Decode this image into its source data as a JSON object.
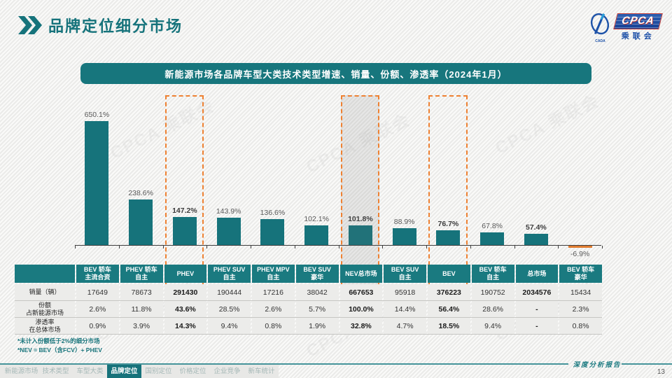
{
  "page": {
    "title": "品牌定位细分市场",
    "page_number": "13",
    "report_label": "深度分析报告",
    "watermark_text": "CPCA 乘联会"
  },
  "logo": {
    "cpca": "CPCA",
    "org": "乘联会",
    "icon_text": "CADA"
  },
  "banner": {
    "title": "新能源市场各品牌车型大类技术类型增速、销量、份额、渗透率（2024年1月）"
  },
  "chart_data": {
    "type": "bar",
    "title": "新能源市场各品牌车型大类技术类型增速、销量、份额、渗透率（2024年1月）",
    "categories": [
      "BEV 轿车 主流合资",
      "PHEV 轿车 自主",
      "PHEV",
      "PHEV SUV 自主",
      "PHEV MPV 自主",
      "BEV SUV 豪华",
      "NEV总市场",
      "BEV SUV 自主",
      "BEV",
      "BEV 轿车 自主",
      "总市场",
      "BEV 轿车 豪华"
    ],
    "values": [
      650.1,
      238.6,
      147.2,
      143.9,
      136.6,
      102.1,
      101.8,
      88.9,
      76.7,
      67.8,
      57.4,
      -6.9
    ],
    "value_labels": [
      "650.1%",
      "238.6%",
      "147.2%",
      "143.9%",
      "136.6%",
      "102.1%",
      "101.8%",
      "88.9%",
      "76.7%",
      "67.8%",
      "57.4%",
      "-6.9%"
    ],
    "emphasized_columns": [
      2,
      6,
      8,
      10
    ],
    "dashed_highlight_columns": [
      2,
      6,
      8
    ],
    "shaded_column": 6,
    "bar_color": "#16737b",
    "negative_bar_color": "#e07c30",
    "highlight_border_color": "#ee8132",
    "ylim": [
      -50,
      700
    ],
    "grid": false,
    "legend": false
  },
  "table": {
    "row_headers": [
      [
        "销量（辆）"
      ],
      [
        "份额",
        "占新能源市场"
      ],
      [
        "渗透率",
        "在总体市场"
      ]
    ],
    "columns": [
      {
        "header": [
          "BEV 轿车",
          "主流合资"
        ],
        "sales": "17649",
        "share": "2.6%",
        "penetration": "0.9%"
      },
      {
        "header": [
          "PHEV 轿车",
          "自主"
        ],
        "sales": "78673",
        "share": "11.8%",
        "penetration": "3.9%"
      },
      {
        "header": [
          "PHEV"
        ],
        "sales": "291430",
        "share": "43.6%",
        "penetration": "14.3%"
      },
      {
        "header": [
          "PHEV SUV",
          "自主"
        ],
        "sales": "190444",
        "share": "28.5%",
        "penetration": "9.4%"
      },
      {
        "header": [
          "PHEV MPV",
          "自主"
        ],
        "sales": "17216",
        "share": "2.6%",
        "penetration": "0.8%"
      },
      {
        "header": [
          "BEV SUV",
          "豪华"
        ],
        "sales": "38042",
        "share": "5.7%",
        "penetration": "1.9%"
      },
      {
        "header": [
          "NEV总市场"
        ],
        "sales": "667653",
        "share": "100.0%",
        "penetration": "32.8%"
      },
      {
        "header": [
          "BEV SUV",
          "自主"
        ],
        "sales": "95918",
        "share": "14.4%",
        "penetration": "4.7%"
      },
      {
        "header": [
          "BEV"
        ],
        "sales": "376223",
        "share": "56.4%",
        "penetration": "18.5%"
      },
      {
        "header": [
          "BEV 轿车",
          "自主"
        ],
        "sales": "190752",
        "share": "28.6%",
        "penetration": "9.4%"
      },
      {
        "header": [
          "总市场"
        ],
        "sales": "2034576",
        "share": "-",
        "penetration": "-"
      },
      {
        "header": [
          "BEV 轿车",
          "豪华"
        ],
        "sales": "15434",
        "share": "2.3%",
        "penetration": "0.8%"
      }
    ]
  },
  "footnotes": [
    "*未计入份额低于2%的细分市场",
    "*NEV = BEV（含FCV）+ PHEV"
  ],
  "nav": {
    "tabs": [
      "新能源市场",
      "技术类型",
      "车型大类",
      "品牌定位",
      "国别定位",
      "价格定位",
      "企业竞争",
      "新车统计"
    ],
    "active_tab": "品牌定位"
  }
}
